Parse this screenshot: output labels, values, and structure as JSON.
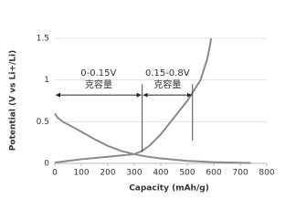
{
  "chart_data": {
    "type": "line",
    "xlabel": "Capacity (mAh/g)",
    "ylabel": "Potential (V vs Li+/Li)",
    "xlim": [
      0,
      800
    ],
    "xticks": [
      0,
      100,
      200,
      300,
      400,
      500,
      600,
      700,
      800
    ],
    "ylim": [
      0,
      1.5
    ],
    "yticks": [
      0,
      0.5,
      1,
      1.5
    ],
    "grid": true,
    "series": [
      {
        "color": "#8a8a8a",
        "x": [
          0,
          10,
          30,
          60,
          100,
          150,
          200,
          250,
          300,
          350,
          400,
          500,
          600,
          740
        ],
        "values": [
          0.6,
          0.55,
          0.5,
          0.45,
          0.38,
          0.29,
          0.21,
          0.15,
          0.11,
          0.08,
          0.06,
          0.03,
          0.015,
          0.005
        ]
      },
      {
        "color": "#8a8a8a",
        "x": [
          0,
          50,
          100,
          200,
          300,
          330,
          360,
          400,
          450,
          500,
          550,
          575,
          585,
          590
        ],
        "values": [
          0.01,
          0.03,
          0.05,
          0.08,
          0.11,
          0.15,
          0.22,
          0.35,
          0.55,
          0.75,
          1.0,
          1.25,
          1.4,
          1.5
        ]
      }
    ],
    "annotations": [
      {
        "text": "0-0.15V",
        "subtext": "克容量",
        "range": [
          0,
          330
        ],
        "y": 0.82
      },
      {
        "text": "0.15-0.8V",
        "subtext": "克容量",
        "range": [
          330,
          520
        ],
        "y": 0.82
      }
    ]
  }
}
